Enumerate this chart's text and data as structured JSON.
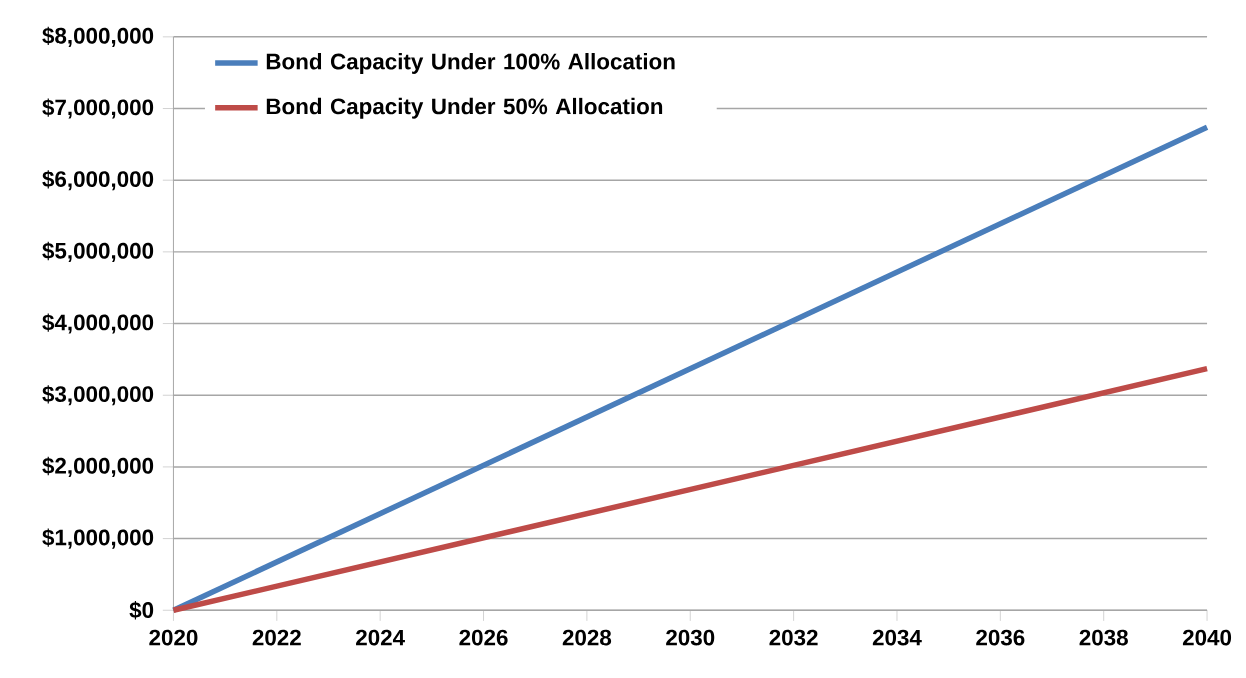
{
  "chart_data": {
    "type": "line",
    "x": [
      2020,
      2030,
      2040
    ],
    "series": [
      {
        "name": "Bond Capacity Under 100% Allocation",
        "color": "#4a7ebb",
        "values": [
          0,
          3370000,
          6740000
        ]
      },
      {
        "name": "Bond Capacity Under 50% Allocation",
        "color": "#be4b48",
        "values": [
          0,
          1685000,
          3370000
        ]
      }
    ],
    "xlim": [
      2020,
      2040
    ],
    "xticks": [
      2020,
      2022,
      2024,
      2026,
      2028,
      2030,
      2032,
      2034,
      2036,
      2038,
      2040
    ],
    "ylim": [
      0,
      8000000
    ],
    "yticks": [
      {
        "value": 0,
        "label": "$0"
      },
      {
        "value": 1000000,
        "label": "$1,000,000"
      },
      {
        "value": 2000000,
        "label": "$2,000,000"
      },
      {
        "value": 3000000,
        "label": "$3,000,000"
      },
      {
        "value": 4000000,
        "label": "$4,000,000"
      },
      {
        "value": 5000000,
        "label": "$5,000,000"
      },
      {
        "value": 6000000,
        "label": "$6,000,000"
      },
      {
        "value": 7000000,
        "label": "$7,000,000"
      },
      {
        "value": 8000000,
        "label": "$8,000,000"
      }
    ],
    "grid": "y",
    "legend": "top left",
    "marker": "none",
    "line_style": "solid"
  }
}
